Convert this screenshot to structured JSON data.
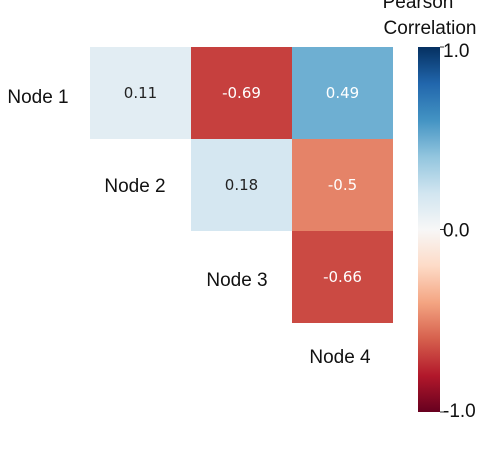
{
  "chart_data": {
    "type": "heatmap",
    "row_labels": [
      "Node 1",
      "Node 2",
      "Node 3"
    ],
    "col_labels": [
      "Node 2",
      "Node 3",
      "Node 4"
    ],
    "cells": [
      {
        "row": "Node 1",
        "col": "Node 2",
        "value": 0.11,
        "label": "0.11"
      },
      {
        "row": "Node 1",
        "col": "Node 3",
        "value": -0.69,
        "label": "-0.69"
      },
      {
        "row": "Node 1",
        "col": "Node 4",
        "value": 0.49,
        "label": "0.49"
      },
      {
        "row": "Node 2",
        "col": "Node 3",
        "value": 0.18,
        "label": "0.18"
      },
      {
        "row": "Node 2",
        "col": "Node 4",
        "value": -0.5,
        "label": "-0.5"
      },
      {
        "row": "Node 3",
        "col": "Node 4",
        "value": -0.66,
        "label": "-0.66"
      }
    ],
    "diagonal_labels": [
      "Node 1",
      "Node 2",
      "Node 3",
      "Node 4"
    ],
    "colorbar": {
      "title_lines": [
        "Pearson",
        "Correlation"
      ],
      "ticks": [
        {
          "value": 1.0,
          "label": "1.0"
        },
        {
          "value": 0.0,
          "label": "0.0"
        },
        {
          "value": -1.0,
          "label": "-1.0"
        }
      ],
      "range": [
        -1.0,
        1.0
      ],
      "colormap": "RdBu"
    }
  }
}
